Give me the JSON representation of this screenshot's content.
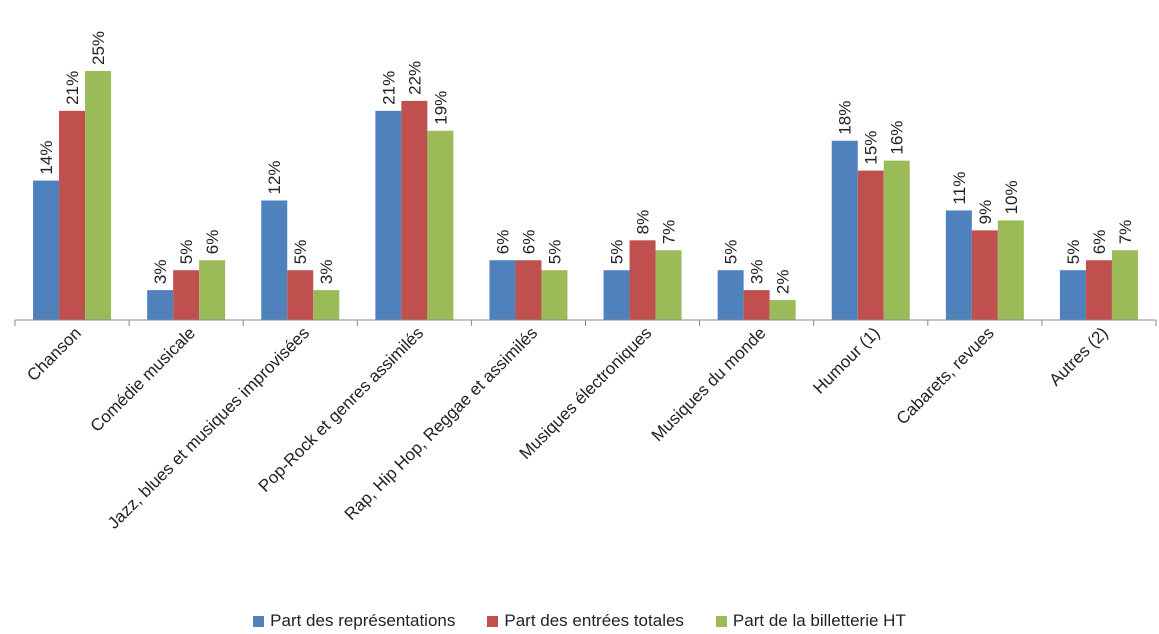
{
  "chart_data": {
    "type": "bar",
    "categories": [
      "Chanson",
      "Comédie musicale",
      "Jazz, blues et musiques improvisées",
      "Pop-Rock et genres assimilés",
      "Rap, Hip Hop, Reggae et assimilés",
      "Musiques électroniques",
      "Musiques du monde",
      "Humour (1)",
      "Cabarets, revues",
      "Autres (2)"
    ],
    "series": [
      {
        "name": "Part des représentations",
        "color": "#4f81bd",
        "values": [
          14,
          3,
          12,
          21,
          6,
          5,
          5,
          18,
          11,
          5
        ]
      },
      {
        "name": "Part des entrées totales",
        "color": "#c0504d",
        "values": [
          21,
          5,
          5,
          22,
          6,
          8,
          3,
          15,
          9,
          6
        ]
      },
      {
        "name": "Part de la billetterie HT",
        "color": "#9bbb59",
        "values": [
          25,
          6,
          3,
          19,
          5,
          7,
          2,
          16,
          10,
          7
        ]
      }
    ],
    "data_labels": [
      [
        "14%",
        "3%",
        "12%",
        "21%",
        "6%",
        "5%",
        "5%",
        "18%",
        "11%",
        "5%"
      ],
      [
        "21%",
        "5%",
        "5%",
        "22%",
        "6%",
        "8%",
        "3%",
        "15%",
        "9%",
        "6%"
      ],
      [
        "25%",
        "6%",
        "3%",
        "19%",
        "5%",
        "7%",
        "2%",
        "16%",
        "10%",
        "7%"
      ]
    ],
    "ylim": [
      0,
      25
    ],
    "grid": false,
    "legend_position": "bottom"
  }
}
